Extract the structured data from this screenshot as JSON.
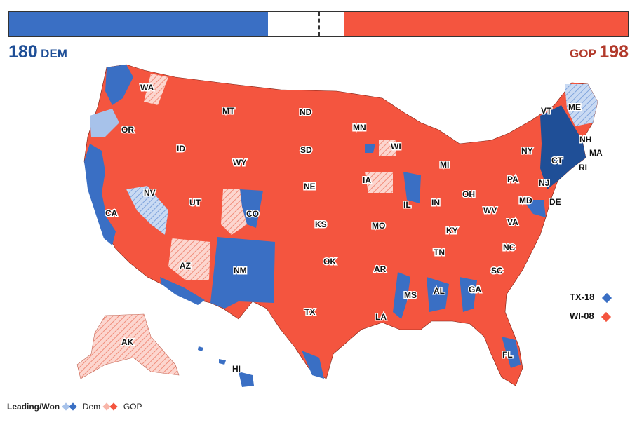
{
  "header": {
    "dem_seats": "180",
    "dem_label": "DEM",
    "gop_seats": "198",
    "gop_label": "GOP",
    "dem_fraction": 0.418,
    "gop_fraction": 0.458,
    "majority_fraction": 0.5
  },
  "colors": {
    "dem_won": "#3a6fc4",
    "dem_leading": "#a7c2ea",
    "gop_won": "#f4553f",
    "gop_leading": "#f8b5a8",
    "dem_dark": "#1f4f97",
    "gop_dark": "#b23a2b"
  },
  "states": [
    "WA",
    "OR",
    "CA",
    "NV",
    "ID",
    "MT",
    "WY",
    "UT",
    "AZ",
    "CO",
    "NM",
    "ND",
    "SD",
    "NE",
    "KS",
    "OK",
    "TX",
    "MN",
    "IA",
    "MO",
    "AR",
    "LA",
    "WI",
    "IL",
    "MI",
    "IN",
    "OH",
    "KY",
    "TN",
    "MS",
    "AL",
    "GA",
    "FL",
    "SC",
    "NC",
    "VA",
    "WV",
    "PA",
    "NY",
    "VT",
    "NH",
    "ME",
    "MA",
    "RI",
    "CT",
    "NJ",
    "MD",
    "DE",
    "AK",
    "HI"
  ],
  "at_large_callouts": [
    {
      "label": "TX-18",
      "party": "dem"
    },
    {
      "label": "WI-08",
      "party": "gop"
    }
  ],
  "legend": {
    "title": "Leading/Won",
    "dem": "Dem",
    "gop": "GOP"
  }
}
